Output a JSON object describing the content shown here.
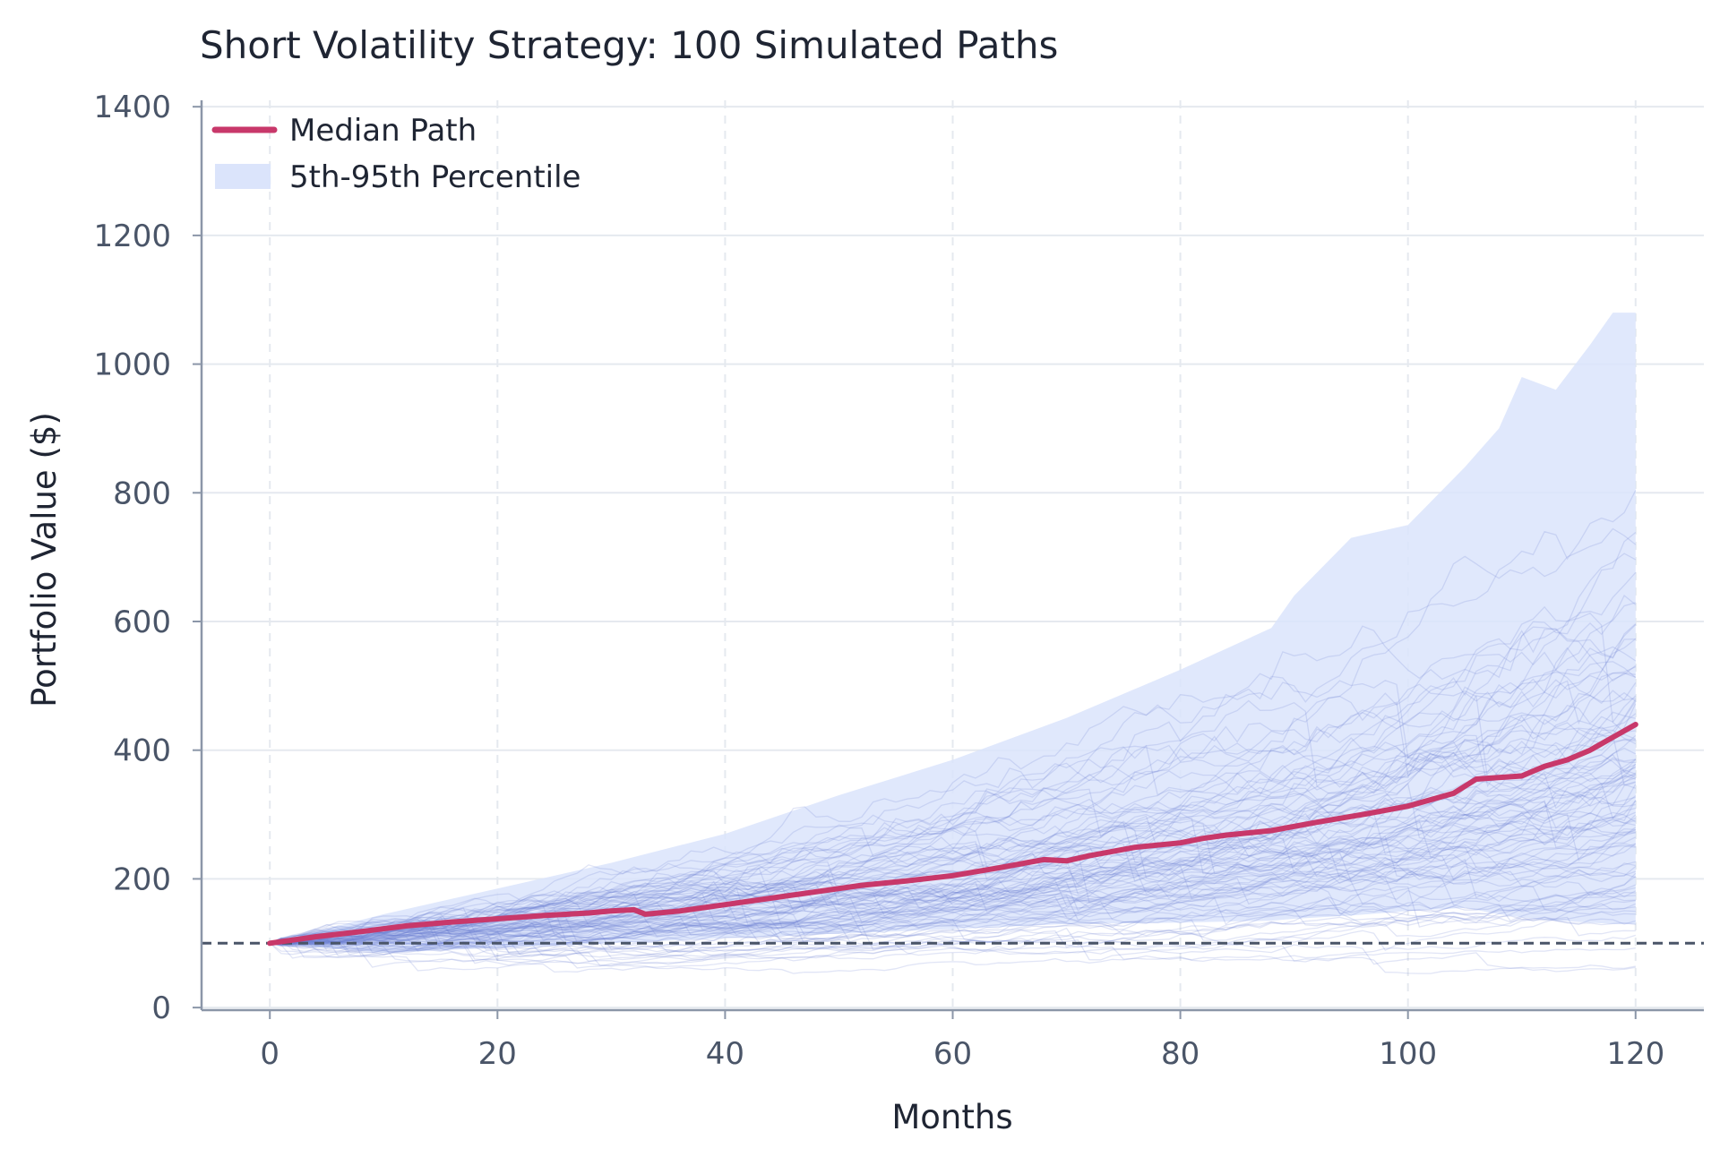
{
  "chart_data": {
    "type": "line",
    "title": "Short Volatility Strategy: 100 Simulated Paths",
    "xlabel": "Months",
    "ylabel": "Portfolio Value ($)",
    "xlim": [
      -6,
      126
    ],
    "ylim": [
      -4,
      1410
    ],
    "xticks": [
      0,
      20,
      40,
      60,
      80,
      100,
      120
    ],
    "yticks": [
      0,
      200,
      400,
      600,
      800,
      1000,
      1200,
      1400
    ],
    "grid": true,
    "legend_position": "top-left",
    "legend": {
      "median_label": "Median Path",
      "band_label": "5th-95th Percentile"
    },
    "initial_value": 100,
    "simulated_path_count": 100,
    "colors": {
      "median": "#c8386a",
      "band": "#dbe4fb",
      "paths": "#6b7fd1",
      "reference": "#4a5568",
      "grid": "#e5e9ef",
      "axis": "#8b96a8"
    },
    "median": {
      "x": [
        0,
        4,
        8,
        12,
        16,
        20,
        24,
        28,
        30,
        32,
        33,
        36,
        40,
        44,
        48,
        52,
        56,
        60,
        64,
        68,
        70,
        72,
        76,
        80,
        82,
        84,
        88,
        92,
        96,
        100,
        104,
        106,
        110,
        112,
        114,
        116,
        118,
        120
      ],
      "values": [
        100,
        110,
        118,
        127,
        133,
        138,
        143,
        147,
        150,
        152,
        145,
        150,
        160,
        170,
        180,
        190,
        197,
        205,
        217,
        230,
        228,
        236,
        249,
        256,
        263,
        268,
        275,
        288,
        300,
        313,
        333,
        355,
        360,
        375,
        385,
        400,
        420,
        440
      ]
    },
    "percentile_band": {
      "x": [
        0,
        10,
        20,
        30,
        40,
        50,
        60,
        70,
        80,
        88,
        90,
        95,
        100,
        105,
        108,
        110,
        113,
        116,
        118,
        120
      ],
      "p95": [
        100,
        145,
        185,
        225,
        270,
        330,
        385,
        450,
        525,
        590,
        640,
        730,
        750,
        840,
        900,
        980,
        960,
        1030,
        1080,
        1080
      ],
      "p5": [
        100,
        85,
        93,
        100,
        108,
        115,
        122,
        130,
        132,
        135,
        138,
        143,
        150,
        155,
        145,
        140,
        135,
        132,
        130,
        130
      ]
    }
  }
}
